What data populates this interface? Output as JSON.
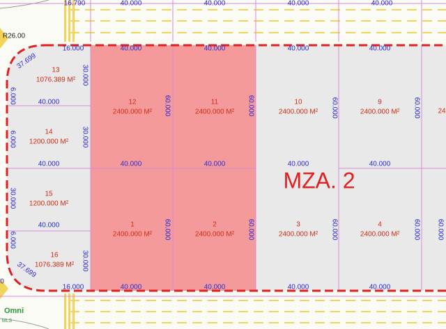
{
  "road_labels": [
    "16.790",
    "40.000",
    "40.000",
    "40.000",
    "40.000"
  ],
  "radius_label": "R26.00",
  "arc_labels": [
    "37.699",
    "37.699"
  ],
  "block_label": "MZA. 2",
  "lots": [
    {
      "number": "13",
      "area": "1076.389 M²"
    },
    {
      "number": "14",
      "area": "1200.000 M²"
    },
    {
      "number": "15",
      "area": "1200.000 M²"
    },
    {
      "number": "16",
      "area": "1076.389 M²"
    },
    {
      "number": "12",
      "area": "2400.000 M²"
    },
    {
      "number": "11",
      "area": "2400.000 M²"
    },
    {
      "number": "10",
      "area": "2400.000 M²"
    },
    {
      "number": "9",
      "area": "2400.000 M²"
    },
    {
      "number": "1",
      "area": "2400.000 M²"
    },
    {
      "number": "2",
      "area": "2400.000 M²"
    },
    {
      "number": "3",
      "area": "2400.000 M²"
    },
    {
      "number": "4",
      "area": "2400.000 M²"
    }
  ],
  "horizontal_dimensions": [
    "16.000",
    "40.000",
    "40.000",
    "40.000",
    "40.000",
    "40.000",
    "40.000",
    "40.000",
    "40.000",
    "40.000",
    "40.000",
    "40.000",
    "40.000",
    "16.000",
    "40.000",
    "40.000",
    "40.000"
  ],
  "vertical_dimensions": [
    "30.000",
    "30.000",
    "30.000",
    "6.000",
    "6.000",
    "30.000",
    "6.000",
    "60.000",
    "60.000",
    "60.000",
    "60.000",
    "60.000",
    "60.000",
    "60.000",
    "60.000",
    "60.000"
  ],
  "edge_fragments": [
    "24",
    "0"
  ],
  "logo": {
    "name": "Omni",
    "sub": "MLS"
  }
}
